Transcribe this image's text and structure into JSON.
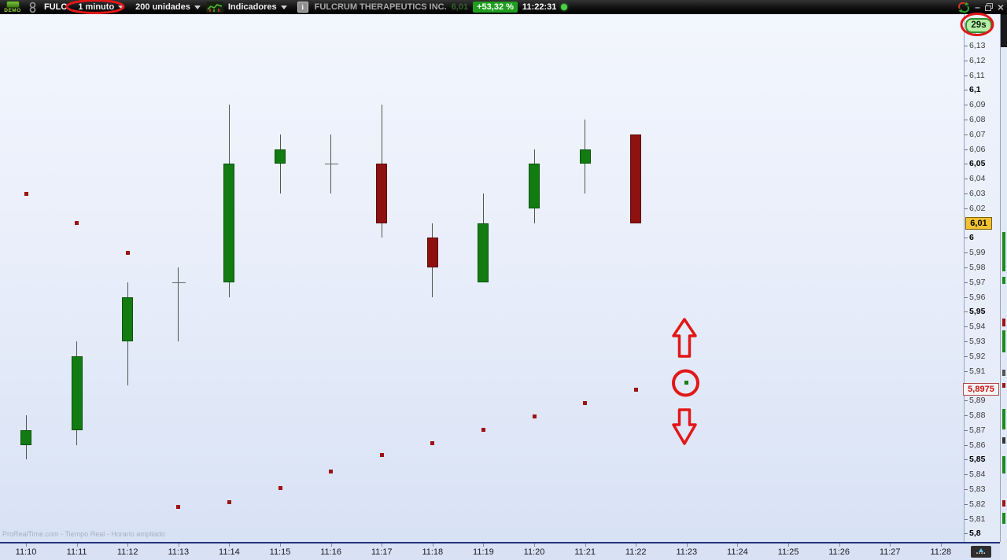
{
  "toolbar": {
    "demo_label": "DEMO",
    "ticker": "FULC",
    "timeframe_label": "1 minuto",
    "units_label": "200 unidades",
    "indicators_label": "Indicadores",
    "info_icon": "i",
    "instrument_name": "FULCRUM THERAPEUTICS INC.",
    "last_price": "6,01",
    "change_percent": "+53,32 %",
    "clock": "11:22:31"
  },
  "watermark": "ProRealTime.com - Tiempo Real - Horario ampliado",
  "colors": {
    "candle_up": "#127c12",
    "candle_down": "#8e1111",
    "sar_dot": "#9c1313",
    "sar_dot_current": "#1b7a1b",
    "annotation_red": "#e11818",
    "last_price_badge_bg": "#f2c233",
    "sar_badge_text": "#c51212",
    "countdown_bg": "#b7eda7",
    "change_badge_bg": "#1f9e1f"
  },
  "chart_data": {
    "type": "candlestick",
    "title": "FULCRUM THERAPEUTICS INC. — 1 minuto",
    "xlabel": "",
    "ylabel": "",
    "grid": false,
    "legend": false,
    "ylim": [
      5.794,
      6.151
    ],
    "countdown": "29s",
    "candles": [
      {
        "time": "11:10",
        "open": 5.86,
        "high": 5.88,
        "low": 5.85,
        "close": 5.87
      },
      {
        "time": "11:11",
        "open": 5.87,
        "high": 5.93,
        "low": 5.86,
        "close": 5.92
      },
      {
        "time": "11:12",
        "open": 5.93,
        "high": 5.97,
        "low": 5.9,
        "close": 5.96
      },
      {
        "time": "11:13",
        "open": 5.97,
        "high": 5.98,
        "low": 5.93,
        "close": 5.97
      },
      {
        "time": "11:14",
        "open": 5.97,
        "high": 6.09,
        "low": 5.96,
        "close": 6.05
      },
      {
        "time": "11:15",
        "open": 6.05,
        "high": 6.07,
        "low": 6.03,
        "close": 6.06
      },
      {
        "time": "11:16",
        "open": 6.05,
        "high": 6.07,
        "low": 6.03,
        "close": 6.05
      },
      {
        "time": "11:17",
        "open": 6.05,
        "high": 6.09,
        "low": 6.0,
        "close": 6.01
      },
      {
        "time": "11:18",
        "open": 6.0,
        "high": 6.01,
        "low": 5.96,
        "close": 5.98
      },
      {
        "time": "11:19",
        "open": 5.97,
        "high": 6.03,
        "low": 5.97,
        "close": 6.01
      },
      {
        "time": "11:20",
        "open": 6.02,
        "high": 6.06,
        "low": 6.01,
        "close": 6.05
      },
      {
        "time": "11:21",
        "open": 6.05,
        "high": 6.08,
        "low": 6.03,
        "close": 6.06
      },
      {
        "time": "11:22",
        "open": 6.07,
        "high": 6.07,
        "low": 6.01,
        "close": 6.01
      }
    ],
    "sar_dots": [
      {
        "time": "11:10",
        "value": 6.03,
        "color": "red"
      },
      {
        "time": "11:11",
        "value": 6.01,
        "color": "red"
      },
      {
        "time": "11:12",
        "value": 5.99,
        "color": "red"
      },
      {
        "time": "11:13",
        "value": 5.818,
        "color": "red"
      },
      {
        "time": "11:14",
        "value": 5.821,
        "color": "red"
      },
      {
        "time": "11:15",
        "value": 5.831,
        "color": "red"
      },
      {
        "time": "11:16",
        "value": 5.842,
        "color": "red"
      },
      {
        "time": "11:17",
        "value": 5.853,
        "color": "red"
      },
      {
        "time": "11:18",
        "value": 5.861,
        "color": "red"
      },
      {
        "time": "11:19",
        "value": 5.87,
        "color": "red"
      },
      {
        "time": "11:20",
        "value": 5.879,
        "color": "red"
      },
      {
        "time": "11:21",
        "value": 5.888,
        "color": "red"
      },
      {
        "time": "11:22",
        "value": 5.8975,
        "color": "red"
      },
      {
        "time": "11:23",
        "value": 5.902,
        "color": "green"
      }
    ],
    "price_axis": {
      "last_label": "6,01",
      "last_value": 6.01,
      "sar_label": "5,8975",
      "sar_value": 5.8975,
      "ticks": [
        {
          "p": 6.14,
          "label": "6,14",
          "bold": false
        },
        {
          "p": 6.13,
          "label": "6,13",
          "bold": false
        },
        {
          "p": 6.12,
          "label": "6,12",
          "bold": false
        },
        {
          "p": 6.11,
          "label": "6,11",
          "bold": false
        },
        {
          "p": 6.1,
          "label": "6,1",
          "bold": true
        },
        {
          "p": 6.09,
          "label": "6,09",
          "bold": false
        },
        {
          "p": 6.08,
          "label": "6,08",
          "bold": false
        },
        {
          "p": 6.07,
          "label": "6,07",
          "bold": false
        },
        {
          "p": 6.06,
          "label": "6,06",
          "bold": false
        },
        {
          "p": 6.05,
          "label": "6,05",
          "bold": true
        },
        {
          "p": 6.04,
          "label": "6,04",
          "bold": false
        },
        {
          "p": 6.03,
          "label": "6,03",
          "bold": false
        },
        {
          "p": 6.02,
          "label": "6,02",
          "bold": false
        },
        {
          "p": 6.0,
          "label": "6",
          "bold": true
        },
        {
          "p": 5.99,
          "label": "5,99",
          "bold": false
        },
        {
          "p": 5.98,
          "label": "5,98",
          "bold": false
        },
        {
          "p": 5.97,
          "label": "5,97",
          "bold": false
        },
        {
          "p": 5.96,
          "label": "5,96",
          "bold": false
        },
        {
          "p": 5.95,
          "label": "5,95",
          "bold": true
        },
        {
          "p": 5.94,
          "label": "5,94",
          "bold": false
        },
        {
          "p": 5.93,
          "label": "5,93",
          "bold": false
        },
        {
          "p": 5.92,
          "label": "5,92",
          "bold": false
        },
        {
          "p": 5.91,
          "label": "5,91",
          "bold": false
        },
        {
          "p": 5.89,
          "label": "5,89",
          "bold": false
        },
        {
          "p": 5.88,
          "label": "5,88",
          "bold": false
        },
        {
          "p": 5.87,
          "label": "5,87",
          "bold": false
        },
        {
          "p": 5.86,
          "label": "5,86",
          "bold": false
        },
        {
          "p": 5.85,
          "label": "5,85",
          "bold": true
        },
        {
          "p": 5.84,
          "label": "5,84",
          "bold": false
        },
        {
          "p": 5.83,
          "label": "5,83",
          "bold": false
        },
        {
          "p": 5.82,
          "label": "5,82",
          "bold": false
        },
        {
          "p": 5.81,
          "label": "5,81",
          "bold": false
        },
        {
          "p": 5.8,
          "label": "5,8",
          "bold": true
        }
      ]
    },
    "time_axis": {
      "labels": [
        "11:10",
        "11:11",
        "11:12",
        "11:13",
        "11:14",
        "11:15",
        "11:16",
        "11:17",
        "11:18",
        "11:19",
        "11:20",
        "11:21",
        "11:22",
        "11:23",
        "11:24",
        "11:25",
        "11:26",
        "11:27",
        "11:28"
      ]
    }
  }
}
